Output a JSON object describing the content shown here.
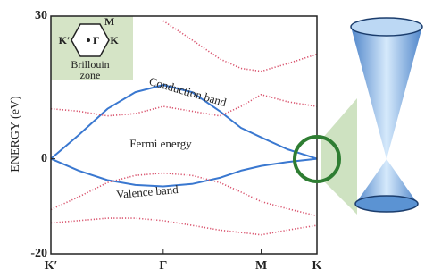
{
  "chart_data": {
    "type": "line",
    "y_label": "ENERGY (eV)",
    "x": [
      0,
      0.33,
      0.67,
      1.0,
      1.33,
      1.67,
      2.0,
      2.25,
      2.49,
      2.8,
      3.15
    ],
    "xlim": [
      0,
      3.15
    ],
    "xticks": [
      {
        "value": 0,
        "label": "K′"
      },
      {
        "value": 1.33,
        "label": "Γ"
      },
      {
        "value": 2.49,
        "label": "M"
      },
      {
        "value": 3.15,
        "label": "K"
      }
    ],
    "ylim": [
      -20,
      30
    ],
    "yticks": [
      -20,
      0,
      30
    ],
    "series": [
      {
        "color": "#3a78d0",
        "style": "solid",
        "values": [
          0,
          5,
          10.5,
          14,
          15.5,
          14,
          10,
          6.5,
          4.5,
          2,
          0
        ]
      },
      {
        "color": "#3a78d0",
        "style": "solid",
        "values": [
          0,
          -2.5,
          -4.5,
          -5.5,
          -5.8,
          -5.3,
          -4,
          -2.5,
          -1.5,
          -0.7,
          0
        ]
      },
      {
        "color": "#d9546e",
        "style": "dotted",
        "values": [
          null,
          null,
          null,
          null,
          29,
          25,
          21,
          19,
          18.4,
          20,
          22
        ]
      },
      {
        "color": "#d9546e",
        "style": "dotted",
        "values": [
          10.5,
          10,
          9,
          9.5,
          11,
          10,
          9,
          11,
          13.5,
          12,
          11
        ]
      },
      {
        "color": "#d9546e",
        "style": "dotted",
        "values": [
          -10.7,
          -8,
          -5,
          -3.5,
          -3,
          -3.5,
          -5,
          -7,
          -9,
          -10.5,
          -12
        ]
      },
      {
        "color": "#d9546e",
        "style": "dotted",
        "values": [
          -13.5,
          -13,
          -12.5,
          -12.5,
          -13,
          -14,
          -15,
          -15.5,
          -16,
          -15,
          -14
        ]
      }
    ],
    "annotations": {
      "conduction": "Conduction band",
      "fermi": "Fermi energy",
      "valence": "Valence band"
    },
    "inset": {
      "labels": {
        "kprime": "K′",
        "m": "M",
        "k": "K",
        "gamma": "Γ"
      },
      "caption": [
        "Brillouin",
        "zone"
      ]
    }
  }
}
